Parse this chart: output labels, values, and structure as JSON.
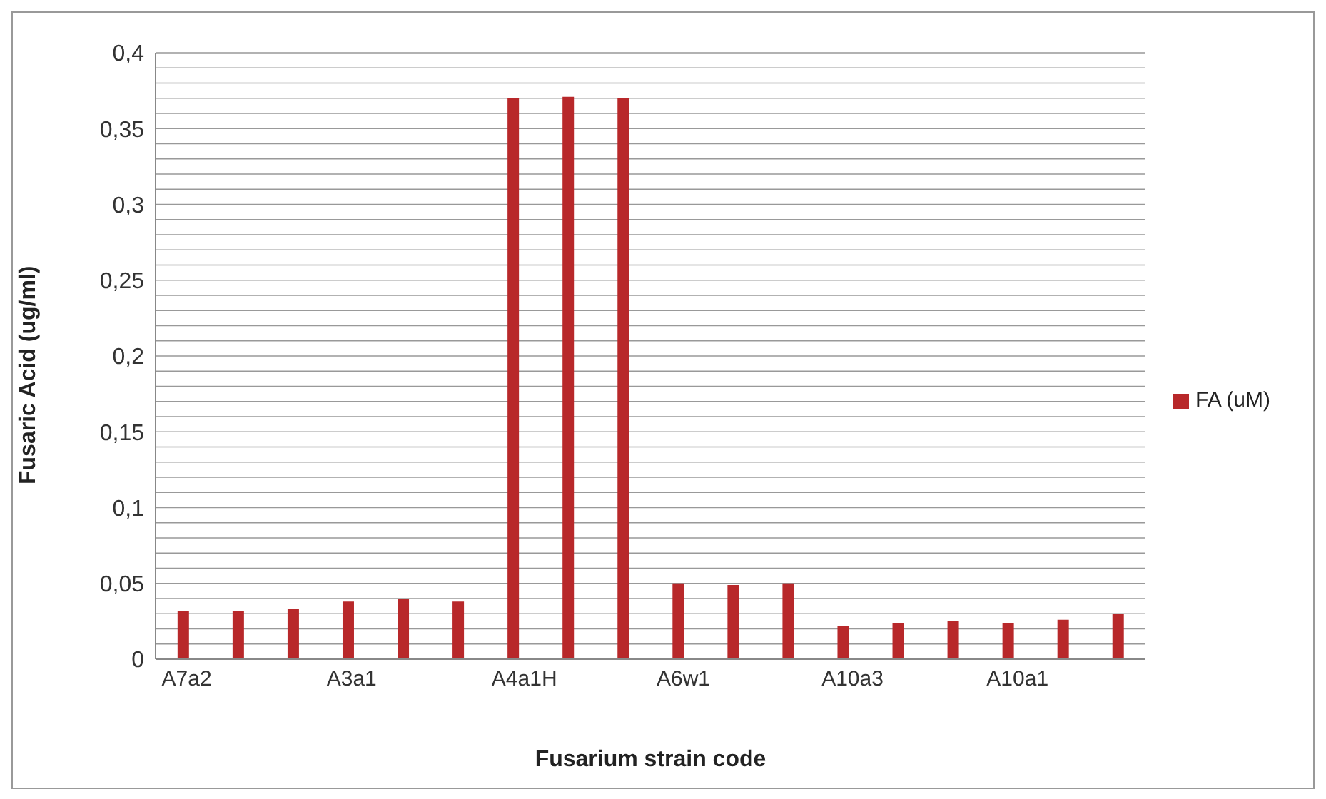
{
  "chart_data": {
    "type": "bar",
    "xlabel": "Fusarium strain code",
    "ylabel": "Fusaric Acid (ug/ml)",
    "categories": [
      "A7a2",
      null,
      null,
      "A3a1",
      null,
      null,
      "A4a1H",
      null,
      null,
      "A6w1",
      null,
      null,
      "A10a3",
      null,
      null,
      "A10a1",
      null,
      null
    ],
    "series": [
      {
        "name": "FA (uM)",
        "color": "#b8282a",
        "values": [
          0.032,
          0.032,
          0.033,
          0.038,
          0.04,
          0.038,
          0.37,
          0.371,
          0.37,
          0.05,
          0.049,
          0.05,
          0.022,
          0.024,
          0.025,
          0.024,
          0.026,
          0.03
        ]
      }
    ],
    "ylim": [
      0,
      0.4
    ],
    "yticks": [
      0,
      {
        "value": 0.01,
        "label": null
      },
      {
        "value": 0.02,
        "label": null
      },
      {
        "value": 0.03,
        "label": null
      },
      {
        "value": 0.04,
        "label": null
      },
      {
        "value": 0.05,
        "label": "0,05"
      },
      {
        "value": 0.06,
        "label": null
      },
      {
        "value": 0.07,
        "label": null
      },
      {
        "value": 0.08,
        "label": null
      },
      {
        "value": 0.09,
        "label": null
      },
      {
        "value": 0.1,
        "label": "0,1"
      },
      {
        "value": 0.11,
        "label": null
      },
      {
        "value": 0.12,
        "label": null
      },
      {
        "value": 0.13,
        "label": null
      },
      {
        "value": 0.14,
        "label": null
      },
      {
        "value": 0.15,
        "label": "0,15"
      },
      {
        "value": 0.16,
        "label": null
      },
      {
        "value": 0.17,
        "label": null
      },
      {
        "value": 0.18,
        "label": null
      },
      {
        "value": 0.19,
        "label": null
      },
      {
        "value": 0.2,
        "label": "0,2"
      },
      {
        "value": 0.21,
        "label": null
      },
      {
        "value": 0.22,
        "label": null
      },
      {
        "value": 0.23,
        "label": null
      },
      {
        "value": 0.24,
        "label": null
      },
      {
        "value": 0.25,
        "label": "0,25"
      },
      {
        "value": 0.26,
        "label": null
      },
      {
        "value": 0.27,
        "label": null
      },
      {
        "value": 0.28,
        "label": null
      },
      {
        "value": 0.29,
        "label": null
      },
      {
        "value": 0.3,
        "label": "0,3"
      },
      {
        "value": 0.31,
        "label": null
      },
      {
        "value": 0.32,
        "label": null
      },
      {
        "value": 0.33,
        "label": null
      },
      {
        "value": 0.34,
        "label": null
      },
      {
        "value": 0.35,
        "label": "0,35"
      },
      {
        "value": 0.36,
        "label": null
      },
      {
        "value": 0.37,
        "label": null
      },
      {
        "value": 0.38,
        "label": null
      },
      {
        "value": 0.39,
        "label": null
      },
      {
        "value": 0.4,
        "label": "0,4"
      }
    ],
    "grid": "y",
    "legend": "right"
  }
}
